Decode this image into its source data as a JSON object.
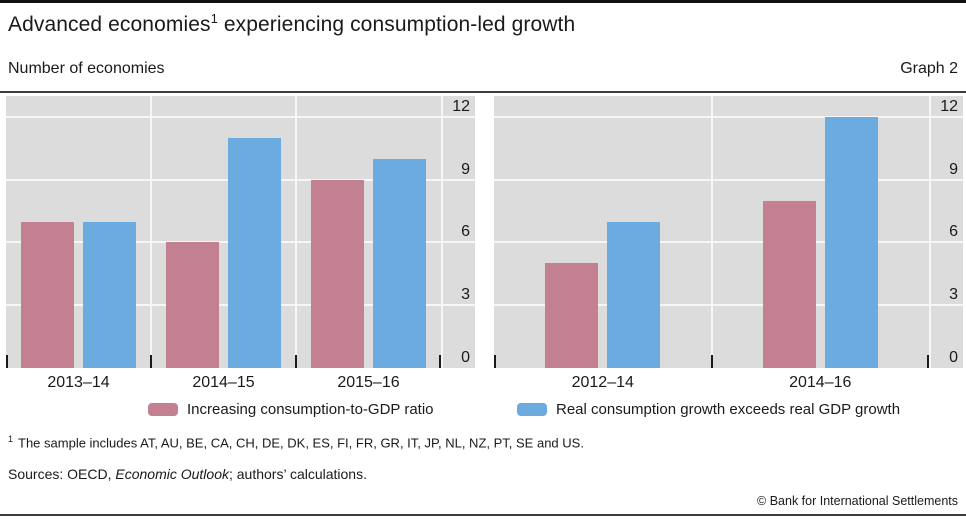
{
  "header": {
    "title": {
      "pre": "Advanced economies",
      "sup": "1",
      "post": " experiencing consumption-led growth"
    },
    "unit_label": "Number of economies",
    "graph_label": "Graph 2"
  },
  "chart_data": [
    {
      "type": "bar",
      "panel": "left",
      "categories": [
        "2013–14",
        "2014–15",
        "2015–16"
      ],
      "series": [
        {
          "name": "Increasing consumption-to-GDP ratio",
          "color": "#c28090",
          "values": [
            7,
            6,
            9
          ]
        },
        {
          "name": "Real consumption growth exceeds real GDP growth",
          "color": "#6babdf",
          "values": [
            7,
            11,
            10
          ]
        }
      ],
      "ylabel": "Number of economies",
      "yticks": [
        0,
        3,
        6,
        9,
        12
      ],
      "ylim": [
        0,
        13
      ],
      "grid": true,
      "gridcolor": "#f6f6f6",
      "background": "#dcdcdc",
      "legend_position": "bottom"
    },
    {
      "type": "bar",
      "panel": "right",
      "categories": [
        "2012–14",
        "2014–16"
      ],
      "series": [
        {
          "name": "Increasing consumption-to-GDP ratio",
          "color": "#c28090",
          "values": [
            5,
            8
          ]
        },
        {
          "name": "Real consumption growth exceeds real GDP growth",
          "color": "#6babdf",
          "values": [
            7,
            12
          ]
        }
      ],
      "ylabel": "Number of economies",
      "yticks": [
        0,
        3,
        6,
        9,
        12
      ],
      "ylim": [
        0,
        13
      ],
      "grid": true,
      "gridcolor": "#f6f6f6",
      "background": "#dcdcdc",
      "legend_position": "bottom"
    }
  ],
  "legend": [
    {
      "label": "Increasing consumption-to-GDP ratio",
      "color": "#c28090"
    },
    {
      "label": "Real consumption growth exceeds real GDP growth",
      "color": "#6babdf"
    }
  ],
  "footnote": {
    "sup": "1",
    "text": "The sample includes AT, AU, BE, CA, CH, DE, DK, ES, FI, FR, GR, IT, JP, NL, NZ, PT, SE and US."
  },
  "sources": {
    "prefix": "Sources: OECD, ",
    "italic": "Economic Outlook",
    "suffix": "; authors’ calculations."
  },
  "copyright": "© Bank for International Settlements"
}
